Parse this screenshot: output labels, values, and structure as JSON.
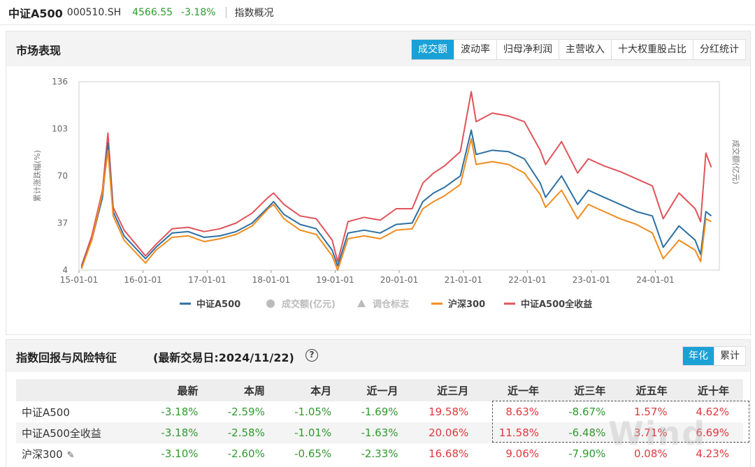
{
  "header": {
    "name": "中证A500",
    "code": "000510.SH",
    "price": "4566.55",
    "change": "-3.18%",
    "overview_link": "指数概况"
  },
  "market": {
    "title": "市场表现",
    "tabs": [
      "成交额",
      "波动率",
      "归母净利润",
      "主营收入",
      "十大权重股占比",
      "分红统计"
    ],
    "active_tab": "成交额"
  },
  "chart_data": {
    "type": "line",
    "ylabel": "累计涨跌幅(%)",
    "y2label": "成交额(亿元)",
    "ylim": [
      4,
      136
    ],
    "yticks": [
      "136",
      "103",
      "70",
      "37",
      "4"
    ],
    "xlim": [
      "2015-01-01",
      "2024-12-31"
    ],
    "xticks": [
      "15-01-01",
      "16-01-01",
      "17-01-01",
      "18-01-01",
      "19-01-01",
      "20-01-01",
      "21-01-01",
      "22-01-01",
      "23-01-01",
      "24-01-01"
    ],
    "x": [
      "2015-01",
      "2015-03",
      "2015-05",
      "2015-06",
      "2015-07",
      "2015-09",
      "2016-01",
      "2016-03",
      "2016-06",
      "2016-09",
      "2016-12",
      "2017-03",
      "2017-06",
      "2017-09",
      "2017-12",
      "2018-01",
      "2018-03",
      "2018-06",
      "2018-09",
      "2018-12",
      "2019-01",
      "2019-03",
      "2019-06",
      "2019-09",
      "2019-12",
      "2020-03",
      "2020-05",
      "2020-07",
      "2020-09",
      "2020-12",
      "2021-02",
      "2021-03",
      "2021-06",
      "2021-09",
      "2021-12",
      "2022-03",
      "2022-04",
      "2022-07",
      "2022-10",
      "2022-12",
      "2023-03",
      "2023-06",
      "2023-09",
      "2023-12",
      "2024-02",
      "2024-05",
      "2024-08",
      "2024-09",
      "2024-10",
      "2024-11"
    ],
    "series": [
      {
        "name": "中证A500",
        "color": "#2d6fa3",
        "values": [
          6,
          25,
          55,
          93,
          45,
          28,
          12,
          20,
          30,
          31,
          27,
          28,
          31,
          37,
          48,
          52,
          43,
          36,
          33,
          18,
          7,
          30,
          32,
          30,
          36,
          37,
          52,
          58,
          62,
          70,
          102,
          85,
          88,
          87,
          82,
          65,
          55,
          70,
          50,
          60,
          55,
          50,
          45,
          42,
          20,
          35,
          25,
          15,
          45,
          42
        ]
      },
      {
        "name": "沪深300",
        "color": "#f08c1e",
        "values": [
          5,
          25,
          58,
          88,
          42,
          25,
          9,
          18,
          27,
          28,
          24,
          26,
          29,
          35,
          47,
          50,
          40,
          32,
          29,
          14,
          4,
          26,
          28,
          26,
          32,
          33,
          47,
          52,
          56,
          64,
          96,
          78,
          80,
          78,
          72,
          57,
          48,
          60,
          40,
          50,
          45,
          40,
          36,
          30,
          12,
          25,
          18,
          10,
          40,
          38
        ]
      },
      {
        "name": "中证A500全收益",
        "color": "#e0535a",
        "values": [
          7,
          28,
          60,
          100,
          48,
          32,
          14,
          22,
          33,
          34,
          31,
          33,
          37,
          44,
          55,
          58,
          50,
          42,
          40,
          25,
          10,
          38,
          41,
          39,
          47,
          47,
          65,
          72,
          77,
          87,
          129,
          108,
          114,
          112,
          108,
          88,
          78,
          94,
          72,
          82,
          77,
          73,
          68,
          63,
          40,
          58,
          47,
          38,
          86,
          76
        ]
      }
    ],
    "legend": [
      {
        "label": "中证A500",
        "kind": "line",
        "color": "#2d6fa3",
        "muted": false
      },
      {
        "label": "成交额(亿元)",
        "kind": "dot",
        "color": "#bbbbbb",
        "muted": true
      },
      {
        "label": "调仓标志",
        "kind": "triangle",
        "color": "#bbbbbb",
        "muted": true
      },
      {
        "label": "沪深300",
        "kind": "line",
        "color": "#f08c1e",
        "muted": false
      },
      {
        "label": "中证A500全收益",
        "kind": "line",
        "color": "#e0535a",
        "muted": false
      }
    ],
    "legend_position": "bottom",
    "grid": false
  },
  "returns": {
    "title": "指数回报与风险特征",
    "date_label": "(最新交易日:2024/11/22)",
    "help": "?",
    "modes": [
      "年化",
      "累计"
    ],
    "active_mode": "年化",
    "columns": [
      "",
      "最新",
      "本周",
      "本月",
      "近一月",
      "近三月",
      "近一年",
      "近三年",
      "近五年",
      "近十年"
    ],
    "rows": [
      {
        "name": "中证A500",
        "values": [
          "-3.18%",
          "-2.59%",
          "-1.05%",
          "-1.69%",
          "19.58%",
          "8.63%",
          "-8.67%",
          "1.57%",
          "4.62%"
        ]
      },
      {
        "name": "中证A500全收益",
        "values": [
          "-3.18%",
          "-2.58%",
          "-1.01%",
          "-1.63%",
          "20.06%",
          "11.58%",
          "-6.48%",
          "3.71%",
          "6.69%"
        ]
      },
      {
        "name": "沪深300",
        "values": [
          "-3.10%",
          "-2.60%",
          "-0.65%",
          "-2.33%",
          "16.68%",
          "9.06%",
          "-7.90%",
          "0.08%",
          "4.23%"
        ]
      }
    ],
    "watermark": "Wind"
  }
}
